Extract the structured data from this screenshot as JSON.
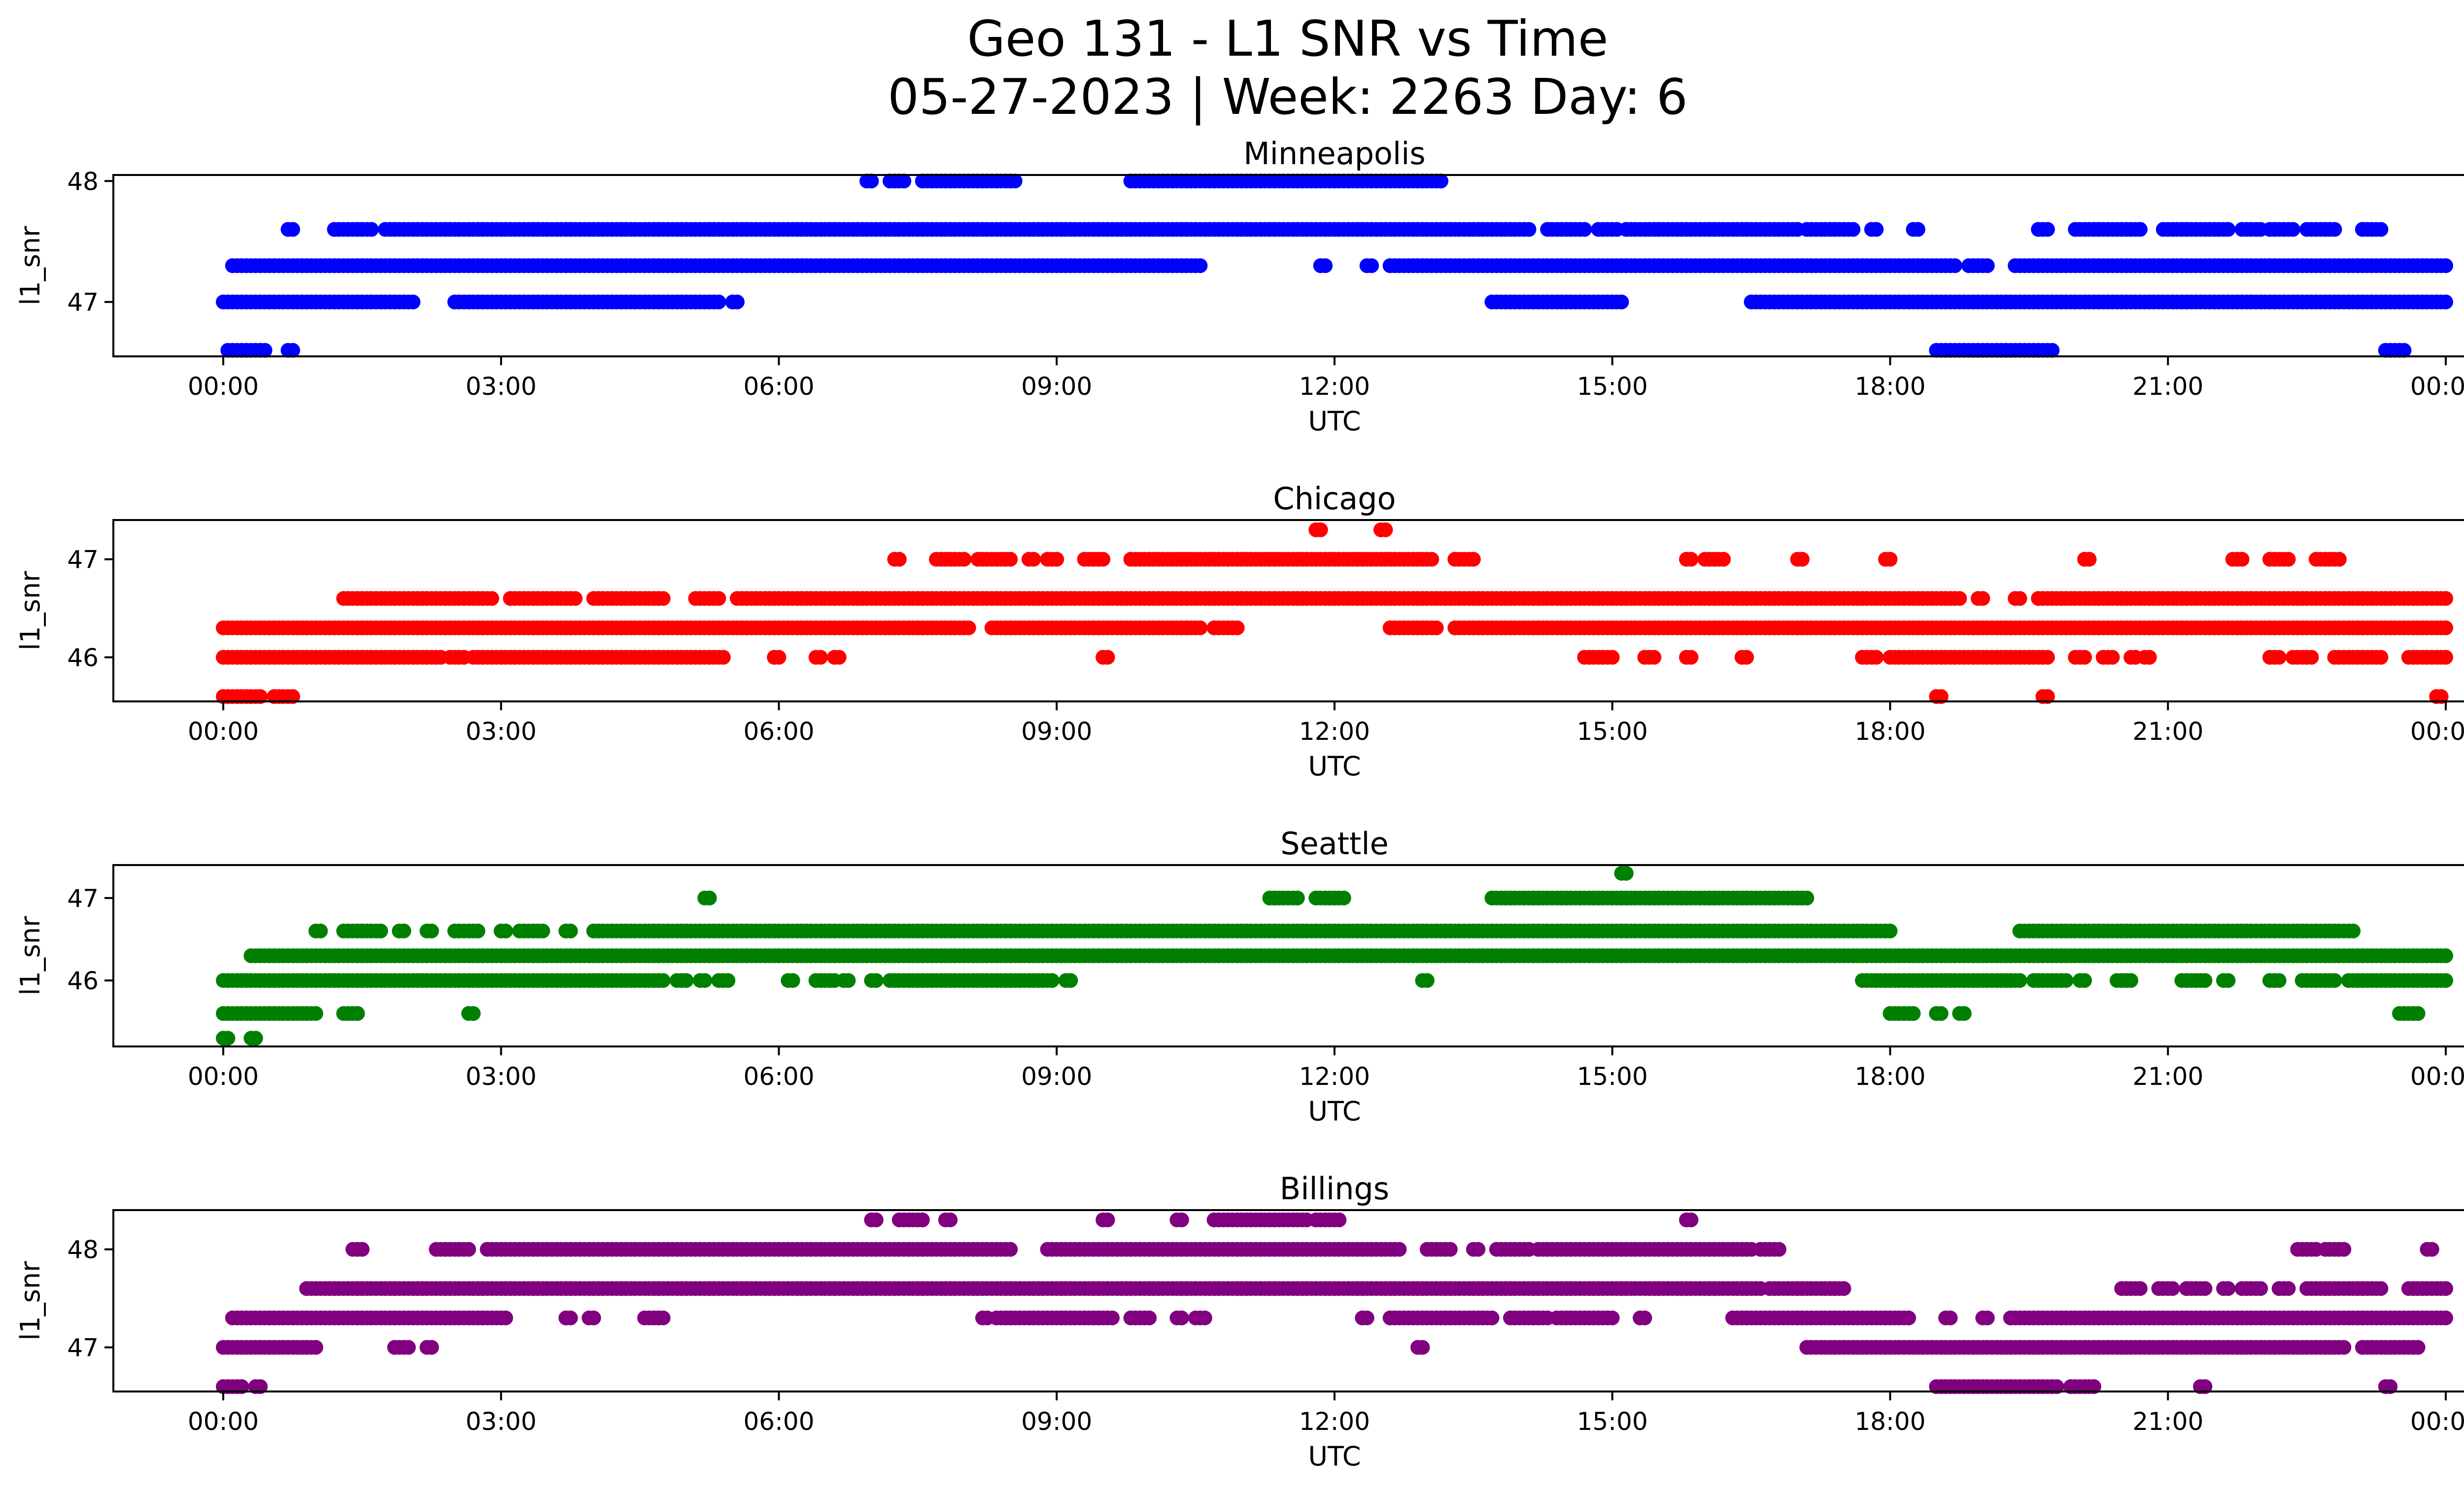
{
  "figure": {
    "title_lines": [
      "Geo 131 - L1 SNR vs Time",
      "05-27-2023 | Week: 2263 Day: 6"
    ]
  },
  "chart_data": [
    {
      "type": "scatter",
      "title": "Minneapolis",
      "xlabel": "UTC",
      "ylabel": "l1_snr",
      "color": "#0000ff",
      "xlim": [
        "00:00",
        "24:00"
      ],
      "x_ticks": [
        "00:00",
        "03:00",
        "06:00",
        "09:00",
        "12:00",
        "15:00",
        "18:00",
        "21:00",
        "00:00"
      ],
      "y_ticks": [
        47,
        48
      ],
      "ylim": [
        46.55,
        48.05
      ],
      "grid": false,
      "series": [
        {
          "y": 48.0,
          "segments": [
            [
              6.95,
              7.0
            ],
            [
              7.2,
              7.35
            ],
            [
              7.55,
              8.55
            ],
            [
              9.8,
              13.15
            ]
          ]
        },
        {
          "y": 47.6,
          "segments": [
            [
              0.7,
              0.75
            ],
            [
              1.2,
              1.6
            ],
            [
              1.75,
              14.1
            ],
            [
              14.3,
              14.7
            ],
            [
              14.85,
              15.05
            ],
            [
              15.15,
              17.0
            ],
            [
              17.1,
              17.6
            ],
            [
              17.8,
              17.85
            ],
            [
              18.25,
              18.3
            ],
            [
              19.6,
              19.7
            ],
            [
              20.0,
              20.7
            ],
            [
              20.95,
              21.65
            ],
            [
              21.8,
              22.0
            ],
            [
              22.1,
              22.35
            ],
            [
              22.5,
              22.8
            ],
            [
              23.1,
              23.3
            ]
          ]
        },
        {
          "y": 47.3,
          "segments": [
            [
              0.1,
              10.55
            ],
            [
              11.85,
              11.9
            ],
            [
              12.35,
              12.4
            ],
            [
              12.6,
              18.7
            ],
            [
              18.85,
              19.05
            ],
            [
              19.35,
              24.0
            ]
          ]
        },
        {
          "y": 47.0,
          "segments": [
            [
              0.0,
              2.05
            ],
            [
              2.5,
              5.35
            ],
            [
              5.5,
              5.55
            ],
            [
              13.7,
              15.1
            ],
            [
              16.5,
              24.0
            ]
          ]
        },
        {
          "y": 46.6,
          "segments": [
            [
              0.05,
              0.45
            ],
            [
              0.7,
              0.75
            ],
            [
              18.5,
              19.75
            ],
            [
              23.35,
              23.55
            ]
          ]
        }
      ]
    },
    {
      "type": "scatter",
      "title": "Chicago",
      "xlabel": "UTC",
      "ylabel": "l1_snr",
      "color": "#ff0000",
      "xlim": [
        "00:00",
        "24:00"
      ],
      "x_ticks": [
        "00:00",
        "03:00",
        "06:00",
        "09:00",
        "12:00",
        "15:00",
        "18:00",
        "21:00",
        "00:00"
      ],
      "y_ticks": [
        46,
        47
      ],
      "ylim": [
        45.55,
        47.4
      ],
      "grid": false,
      "series": [
        {
          "y": 47.3,
          "segments": [
            [
              11.8,
              11.85
            ],
            [
              12.5,
              12.55
            ]
          ]
        },
        {
          "y": 47.0,
          "segments": [
            [
              7.25,
              7.3
            ],
            [
              7.7,
              8.0
            ],
            [
              8.15,
              8.5
            ],
            [
              8.7,
              8.75
            ],
            [
              8.9,
              9.0
            ],
            [
              9.3,
              9.5
            ],
            [
              9.8,
              13.05
            ],
            [
              13.3,
              13.5
            ],
            [
              15.8,
              15.85
            ],
            [
              16.0,
              16.2
            ],
            [
              17.0,
              17.05
            ],
            [
              17.95,
              18.0
            ],
            [
              20.1,
              20.15
            ],
            [
              21.7,
              21.8
            ],
            [
              22.1,
              22.3
            ],
            [
              22.6,
              22.85
            ]
          ]
        },
        {
          "y": 46.6,
          "segments": [
            [
              1.3,
              2.9
            ],
            [
              3.1,
              3.8
            ],
            [
              4.0,
              4.75
            ],
            [
              5.1,
              5.35
            ],
            [
              5.55,
              18.75
            ],
            [
              18.95,
              19.0
            ],
            [
              19.35,
              19.4
            ],
            [
              19.6,
              24.0
            ]
          ]
        },
        {
          "y": 46.3,
          "segments": [
            [
              0.0,
              8.05
            ],
            [
              8.3,
              10.55
            ],
            [
              10.7,
              10.95
            ],
            [
              12.6,
              13.1
            ],
            [
              13.3,
              24.0
            ]
          ]
        },
        {
          "y": 46.0,
          "segments": [
            [
              0.0,
              2.35
            ],
            [
              2.45,
              2.6
            ],
            [
              2.7,
              5.4
            ],
            [
              5.95,
              6.0
            ],
            [
              6.4,
              6.45
            ],
            [
              6.6,
              6.65
            ],
            [
              9.5,
              9.55
            ],
            [
              14.7,
              15.0
            ],
            [
              15.35,
              15.45
            ],
            [
              15.8,
              15.85
            ],
            [
              16.4,
              16.45
            ],
            [
              17.7,
              17.85
            ],
            [
              18.0,
              19.7
            ],
            [
              20.0,
              20.1
            ],
            [
              20.3,
              20.4
            ],
            [
              20.6,
              20.65
            ],
            [
              20.75,
              20.8
            ],
            [
              22.1,
              22.2
            ],
            [
              22.35,
              22.55
            ],
            [
              22.8,
              23.3
            ],
            [
              23.6,
              24.0
            ]
          ]
        },
        {
          "y": 45.6,
          "segments": [
            [
              0.0,
              0.4
            ],
            [
              0.55,
              0.75
            ],
            [
              18.5,
              18.55
            ],
            [
              19.65,
              19.7
            ],
            [
              23.9,
              23.95
            ]
          ]
        }
      ]
    },
    {
      "type": "scatter",
      "title": "Seattle",
      "xlabel": "UTC",
      "ylabel": "l1_snr",
      "color": "#008000",
      "xlim": [
        "00:00",
        "24:00"
      ],
      "x_ticks": [
        "00:00",
        "03:00",
        "06:00",
        "09:00",
        "12:00",
        "15:00",
        "18:00",
        "21:00",
        "00:00"
      ],
      "y_ticks": [
        46,
        47
      ],
      "ylim": [
        45.2,
        47.4
      ],
      "grid": false,
      "series": [
        {
          "y": 47.3,
          "segments": [
            [
              15.1,
              15.15
            ]
          ]
        },
        {
          "y": 47.0,
          "segments": [
            [
              5.2,
              5.25
            ],
            [
              11.3,
              11.6
            ],
            [
              11.8,
              12.1
            ],
            [
              13.7,
              17.1
            ]
          ]
        },
        {
          "y": 46.6,
          "segments": [
            [
              1.0,
              1.05
            ],
            [
              1.3,
              1.7
            ],
            [
              1.9,
              1.95
            ],
            [
              2.2,
              2.25
            ],
            [
              2.5,
              2.75
            ],
            [
              3.0,
              3.05
            ],
            [
              3.2,
              3.45
            ],
            [
              3.7,
              3.75
            ],
            [
              4.0,
              18.0
            ],
            [
              19.4,
              23.0
            ]
          ]
        },
        {
          "y": 46.3,
          "segments": [
            [
              0.3,
              24.0
            ]
          ]
        },
        {
          "y": 46.0,
          "segments": [
            [
              0.0,
              4.75
            ],
            [
              4.9,
              5.0
            ],
            [
              5.15,
              5.2
            ],
            [
              5.35,
              5.45
            ],
            [
              6.1,
              6.15
            ],
            [
              6.4,
              6.6
            ],
            [
              6.7,
              6.75
            ],
            [
              7.0,
              7.05
            ],
            [
              7.2,
              8.95
            ],
            [
              9.1,
              9.15
            ],
            [
              12.95,
              13.0
            ],
            [
              17.7,
              19.4
            ],
            [
              19.55,
              19.9
            ],
            [
              20.05,
              20.1
            ],
            [
              20.45,
              20.6
            ],
            [
              21.15,
              21.4
            ],
            [
              21.6,
              21.65
            ],
            [
              22.1,
              22.2
            ],
            [
              22.45,
              22.8
            ],
            [
              22.95,
              24.0
            ]
          ]
        },
        {
          "y": 45.6,
          "segments": [
            [
              0.0,
              1.0
            ],
            [
              1.3,
              1.45
            ],
            [
              2.65,
              2.7
            ],
            [
              18.0,
              18.25
            ],
            [
              18.5,
              18.55
            ],
            [
              18.75,
              18.8
            ],
            [
              23.5,
              23.7
            ]
          ]
        },
        {
          "y": 45.3,
          "segments": [
            [
              0.0,
              0.05
            ],
            [
              0.3,
              0.35
            ]
          ]
        }
      ]
    },
    {
      "type": "scatter",
      "title": "Billings",
      "xlabel": "UTC",
      "ylabel": "l1_snr",
      "color": "#800080",
      "xlim": [
        "00:00",
        "24:00"
      ],
      "x_ticks": [
        "00:00",
        "03:00",
        "06:00",
        "09:00",
        "12:00",
        "15:00",
        "18:00",
        "21:00",
        "00:00"
      ],
      "y_ticks": [
        47,
        48
      ],
      "ylim": [
        46.55,
        48.4
      ],
      "grid": false,
      "series": [
        {
          "y": 48.3,
          "segments": [
            [
              7.0,
              7.05
            ],
            [
              7.3,
              7.55
            ],
            [
              7.8,
              7.85
            ],
            [
              9.5,
              9.55
            ],
            [
              10.3,
              10.35
            ],
            [
              10.7,
              11.7
            ],
            [
              11.8,
              11.95
            ],
            [
              12.0,
              12.05
            ],
            [
              15.8,
              15.85
            ]
          ]
        },
        {
          "y": 48.0,
          "segments": [
            [
              1.4,
              1.5
            ],
            [
              2.3,
              2.65
            ],
            [
              2.85,
              8.5
            ],
            [
              8.9,
              12.7
            ],
            [
              13.0,
              13.25
            ],
            [
              13.5,
              13.55
            ],
            [
              13.75,
              14.1
            ],
            [
              14.2,
              16.5
            ],
            [
              16.6,
              16.8
            ],
            [
              22.4,
              22.6
            ],
            [
              22.7,
              22.9
            ],
            [
              23.8,
              23.85
            ]
          ]
        },
        {
          "y": 47.6,
          "segments": [
            [
              0.9,
              16.6
            ],
            [
              16.7,
              17.5
            ],
            [
              20.5,
              20.7
            ],
            [
              20.9,
              21.05
            ],
            [
              21.2,
              21.4
            ],
            [
              21.6,
              21.65
            ],
            [
              21.8,
              22.0
            ],
            [
              22.2,
              22.3
            ],
            [
              22.5,
              23.3
            ],
            [
              23.6,
              24.0
            ]
          ]
        },
        {
          "y": 47.3,
          "segments": [
            [
              0.1,
              3.05
            ],
            [
              3.7,
              3.75
            ],
            [
              3.95,
              4.0
            ],
            [
              4.55,
              4.75
            ],
            [
              8.2,
              8.25
            ],
            [
              8.35,
              9.0
            ],
            [
              9.05,
              9.6
            ],
            [
              9.8,
              10.0
            ],
            [
              10.3,
              10.35
            ],
            [
              10.5,
              10.6
            ],
            [
              12.3,
              12.35
            ],
            [
              12.6,
              13.7
            ],
            [
              13.9,
              14.3
            ],
            [
              14.4,
              15.0
            ],
            [
              15.3,
              15.35
            ],
            [
              16.3,
              18.2
            ],
            [
              18.6,
              18.65
            ],
            [
              19.0,
              19.05
            ],
            [
              19.3,
              24.0
            ]
          ]
        },
        {
          "y": 47.0,
          "segments": [
            [
              0.0,
              1.0
            ],
            [
              1.85,
              2.0
            ],
            [
              2.2,
              2.25
            ],
            [
              12.9,
              12.95
            ],
            [
              17.1,
              22.9
            ],
            [
              23.1,
              23.7
            ]
          ]
        },
        {
          "y": 46.6,
          "segments": [
            [
              0.0,
              0.2
            ],
            [
              0.35,
              0.4
            ],
            [
              18.5,
              19.8
            ],
            [
              19.95,
              20.2
            ],
            [
              21.35,
              21.4
            ],
            [
              23.35,
              23.4
            ]
          ]
        }
      ]
    }
  ]
}
